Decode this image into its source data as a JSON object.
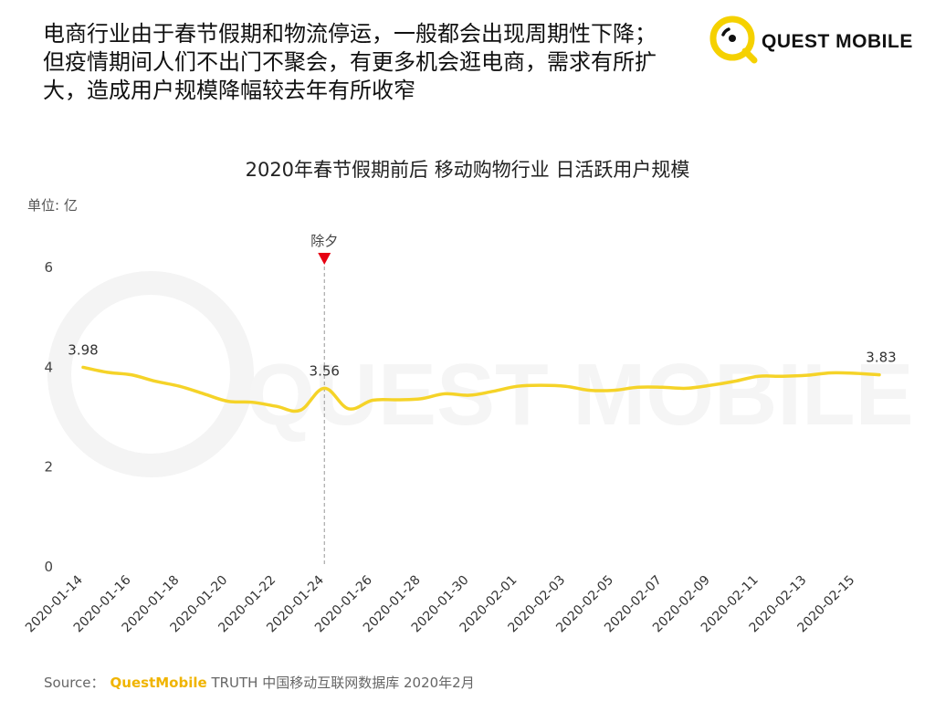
{
  "headline": {
    "lines": [
      "电商行业由于春节假期和物流停运，一般都会出现周期性下降；",
      "但疫情期间人们不出门不聚会，有更多机会逛电商，需求有所扩",
      "大，造成用户规模降幅较去年有所收窄"
    ]
  },
  "logo": {
    "text": "QUEST MOBILE",
    "color": "#f5d100"
  },
  "watermark": {
    "text": "QUEST MOBILE"
  },
  "chart_title": "2020年春节假期前后 移动购物行业 日活跃用户规模",
  "unit_label": "单位: 亿",
  "source": {
    "prefix": "Source：",
    "brand": "QuestMobile",
    "rest": "TRUTH 中国移动互联网数据库 2020年2月"
  },
  "chart_data": {
    "type": "line",
    "title": "2020年春节假期前后 移动购物行业 日活跃用户规模",
    "ylabel": "单位: 亿",
    "ylim": [
      0,
      6
    ],
    "yticks": [
      0,
      2,
      4,
      6
    ],
    "grid": false,
    "line_color": "#f5d328",
    "x_tick_labels": [
      "2020-01-14",
      "2020-01-16",
      "2020-01-18",
      "2020-01-20",
      "2020-01-22",
      "2020-01-24",
      "2020-01-26",
      "2020-01-28",
      "2020-01-30",
      "2020-02-01",
      "2020-02-03",
      "2020-02-05",
      "2020-02-07",
      "2020-02-09",
      "2020-02-11",
      "2020-02-13",
      "2020-02-15"
    ],
    "x": [
      "2020-01-14",
      "2020-01-15",
      "2020-01-16",
      "2020-01-17",
      "2020-01-18",
      "2020-01-19",
      "2020-01-20",
      "2020-01-21",
      "2020-01-22",
      "2020-01-23",
      "2020-01-24",
      "2020-01-25",
      "2020-01-26",
      "2020-01-27",
      "2020-01-28",
      "2020-01-29",
      "2020-01-30",
      "2020-01-31",
      "2020-02-01",
      "2020-02-02",
      "2020-02-03",
      "2020-02-04",
      "2020-02-05",
      "2020-02-06",
      "2020-02-07",
      "2020-02-08",
      "2020-02-09",
      "2020-02-10",
      "2020-02-11",
      "2020-02-12",
      "2020-02-13",
      "2020-02-14",
      "2020-02-15",
      "2020-02-16"
    ],
    "series": [
      {
        "values": [
          3.98,
          3.88,
          3.83,
          3.7,
          3.6,
          3.45,
          3.3,
          3.28,
          3.2,
          3.12,
          3.56,
          3.15,
          3.32,
          3.33,
          3.35,
          3.45,
          3.42,
          3.5,
          3.6,
          3.62,
          3.6,
          3.52,
          3.52,
          3.58,
          3.58,
          3.56,
          3.62,
          3.7,
          3.8,
          3.8,
          3.82,
          3.87,
          3.86,
          3.83
        ]
      }
    ],
    "data_labels": [
      {
        "index": 0,
        "text": "3.98"
      },
      {
        "index": 10,
        "text": "3.56"
      },
      {
        "index": 33,
        "text": "3.83"
      }
    ],
    "annotation": {
      "index": 10,
      "text": "除夕",
      "marker_color": "#e60012"
    }
  }
}
